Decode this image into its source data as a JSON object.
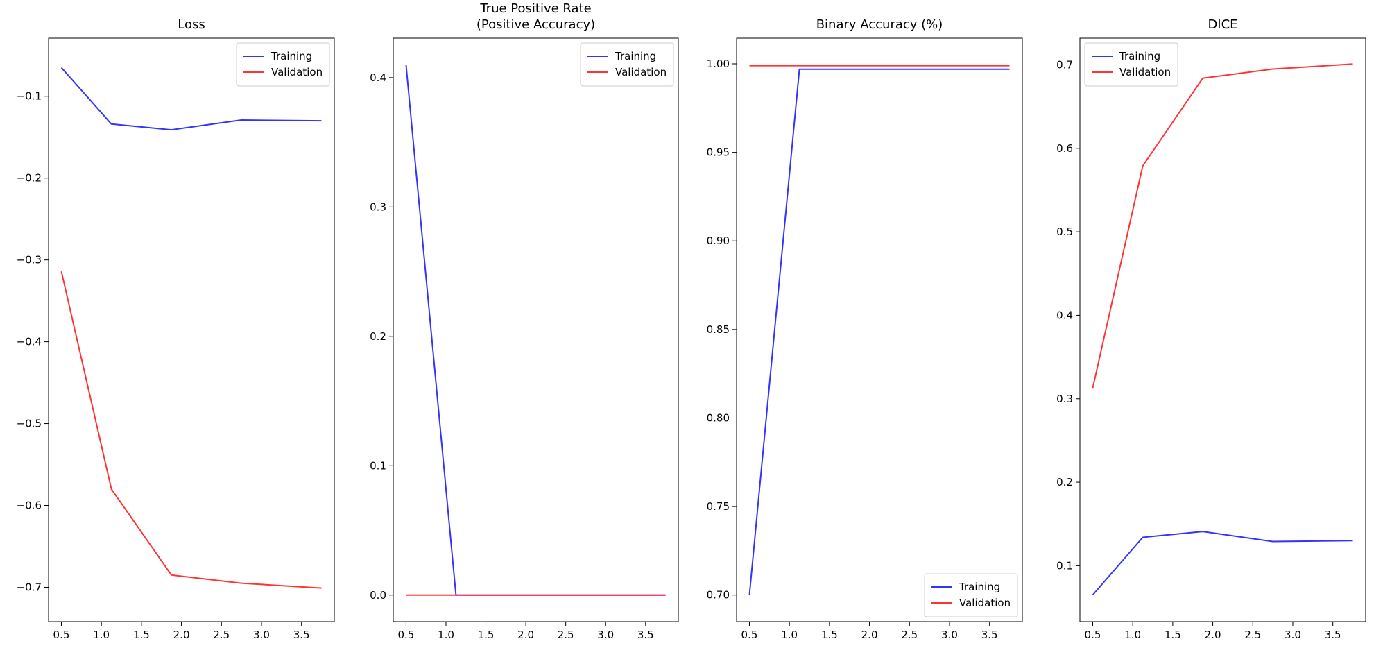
{
  "colors": {
    "training": "#3333ff",
    "validation": "#ff3333",
    "axes": "#000000",
    "legend_border": "#cccccc"
  },
  "chart_data": [
    {
      "type": "line",
      "title": [
        "Loss"
      ],
      "x": [
        0.5,
        1.125,
        1.875,
        2.75,
        3.75
      ],
      "xlim": [
        0.34,
        3.91
      ],
      "ylim": [
        -0.742,
        -0.029
      ],
      "xticks": [
        0.5,
        1.0,
        1.5,
        2.0,
        2.5,
        3.0,
        3.5
      ],
      "xtick_labels": [
        "0.5",
        "1.0",
        "1.5",
        "2.0",
        "2.5",
        "3.0",
        "3.5"
      ],
      "yticks": [
        -0.1,
        -0.2,
        -0.3,
        -0.4,
        -0.5,
        -0.6,
        -0.7
      ],
      "ytick_labels": [
        "−0.1",
        "−0.2",
        "−0.3",
        "−0.4",
        "−0.5",
        "−0.6",
        "−0.7"
      ],
      "legend": "top-right",
      "series": [
        {
          "name": "Training",
          "color": "#3333ff",
          "values": [
            -0.065,
            -0.134,
            -0.141,
            -0.129,
            -0.13
          ]
        },
        {
          "name": "Validation",
          "color": "#ff3333",
          "values": [
            -0.314,
            -0.58,
            -0.685,
            -0.695,
            -0.701
          ]
        }
      ]
    },
    {
      "type": "line",
      "title": [
        "True Positive Rate",
        "(Positive Accuracy)"
      ],
      "x": [
        0.5,
        1.125,
        1.875,
        2.75,
        3.75
      ],
      "xlim": [
        0.34,
        3.91
      ],
      "ylim": [
        -0.0205,
        0.4305
      ],
      "xticks": [
        0.5,
        1.0,
        1.5,
        2.0,
        2.5,
        3.0,
        3.5
      ],
      "xtick_labels": [
        "0.5",
        "1.0",
        "1.5",
        "2.0",
        "2.5",
        "3.0",
        "3.5"
      ],
      "yticks": [
        0.0,
        0.1,
        0.2,
        0.3,
        0.4
      ],
      "ytick_labels": [
        "0.0",
        "0.1",
        "0.2",
        "0.3",
        "0.4"
      ],
      "legend": "top-right",
      "series": [
        {
          "name": "Training",
          "color": "#3333ff",
          "values": [
            0.41,
            0.0,
            0.0,
            0.0,
            0.0
          ]
        },
        {
          "name": "Validation",
          "color": "#ff3333",
          "values": [
            0.0,
            0.0,
            0.0,
            0.0,
            0.0
          ]
        }
      ]
    },
    {
      "type": "line",
      "title": [
        "Binary Accuracy (%)"
      ],
      "x": [
        0.5,
        1.125,
        1.875,
        2.75,
        3.75
      ],
      "xlim": [
        0.34,
        3.91
      ],
      "ylim": [
        0.685,
        1.0145
      ],
      "xticks": [
        0.5,
        1.0,
        1.5,
        2.0,
        2.5,
        3.0,
        3.5
      ],
      "xtick_labels": [
        "0.5",
        "1.0",
        "1.5",
        "2.0",
        "2.5",
        "3.0",
        "3.5"
      ],
      "yticks": [
        1.0,
        0.95,
        0.9,
        0.85,
        0.8,
        0.75,
        0.7
      ],
      "ytick_labels": [
        "1.00",
        "0.95",
        "0.90",
        "0.85",
        "0.80",
        "0.75",
        "0.70"
      ],
      "legend": "bottom-right",
      "series": [
        {
          "name": "Training",
          "color": "#3333ff",
          "values": [
            0.7,
            0.997,
            0.997,
            0.997,
            0.997
          ]
        },
        {
          "name": "Validation",
          "color": "#ff3333",
          "values": [
            0.999,
            0.999,
            0.999,
            0.999,
            0.999
          ]
        }
      ]
    },
    {
      "type": "line",
      "title": [
        "DICE"
      ],
      "x": [
        0.5,
        1.125,
        1.875,
        2.75,
        3.75
      ],
      "xlim": [
        0.34,
        3.91
      ],
      "ylim": [
        0.033,
        0.732
      ],
      "xticks": [
        0.5,
        1.0,
        1.5,
        2.0,
        2.5,
        3.0,
        3.5
      ],
      "xtick_labels": [
        "0.5",
        "1.0",
        "1.5",
        "2.0",
        "2.5",
        "3.0",
        "3.5"
      ],
      "yticks": [
        0.7,
        0.6,
        0.5,
        0.4,
        0.3,
        0.2,
        0.1
      ],
      "ytick_labels": [
        "0.7",
        "0.6",
        "0.5",
        "0.4",
        "0.3",
        "0.2",
        "0.1"
      ],
      "legend": "top-left",
      "series": [
        {
          "name": "Training",
          "color": "#3333ff",
          "values": [
            0.065,
            0.134,
            0.141,
            0.129,
            0.13
          ]
        },
        {
          "name": "Validation",
          "color": "#ff3333",
          "values": [
            0.313,
            0.579,
            0.684,
            0.695,
            0.701
          ]
        }
      ]
    }
  ]
}
